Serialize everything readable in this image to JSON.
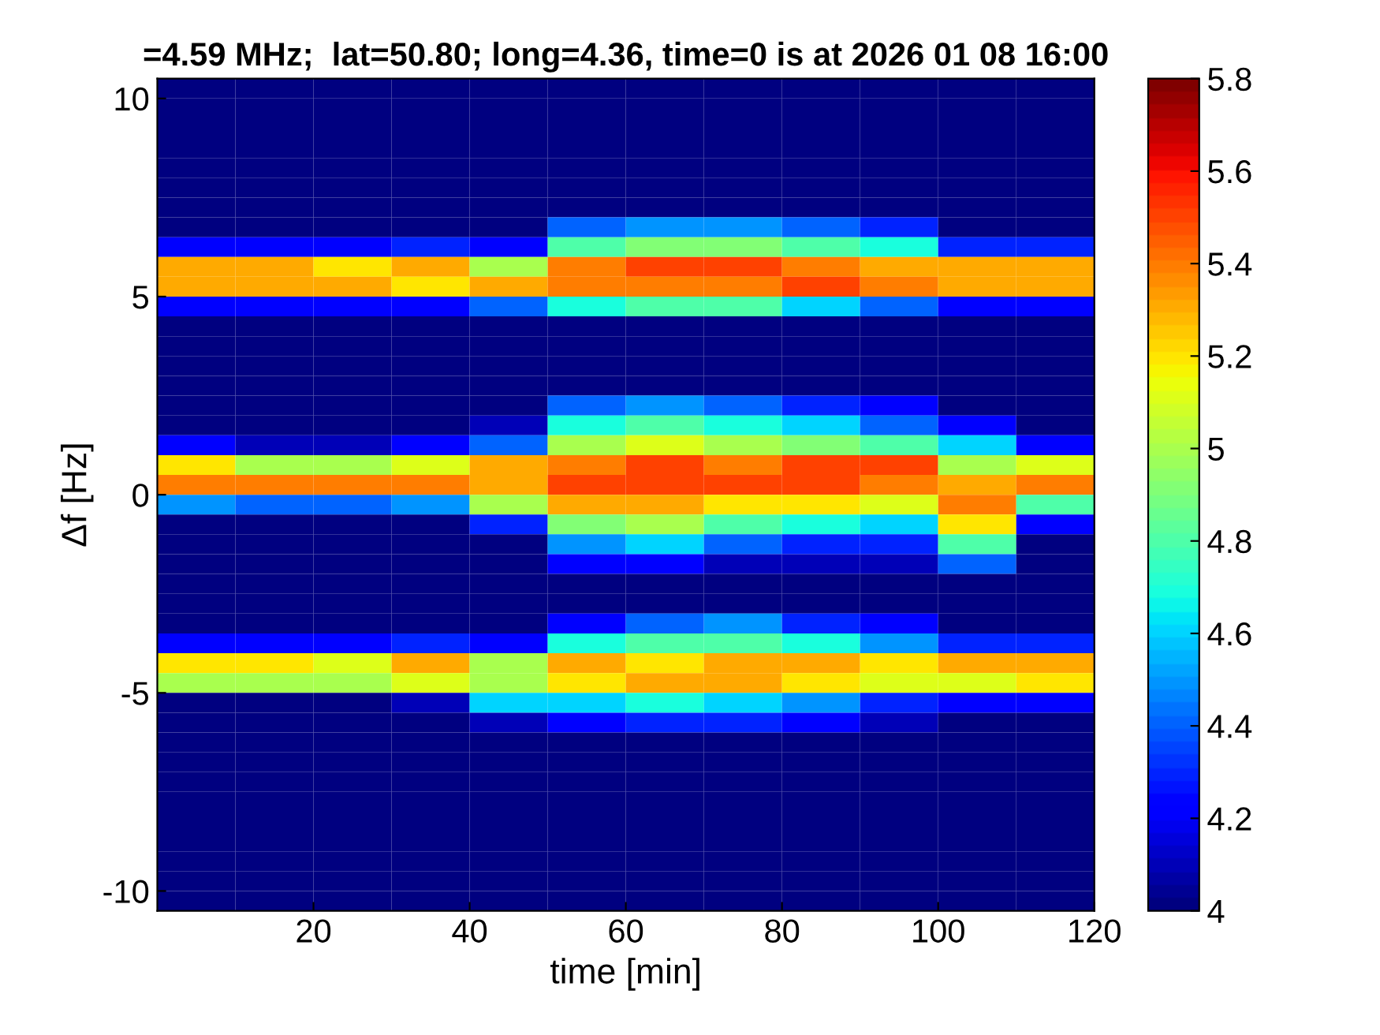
{
  "chart_data": {
    "type": "heatmap",
    "title": "=4.59 MHz;  lat=50.80; long=4.36, time=0 is at 2026 01 08 16:00",
    "xlabel": "time [min]",
    "ylabel": "Δf [Hz]",
    "xlim": [
      0,
      120
    ],
    "xticks": [
      20,
      40,
      60,
      80,
      100,
      120
    ],
    "ylim": [
      -10.5,
      10.5
    ],
    "yticks": [
      -10,
      -5,
      0,
      5,
      10
    ],
    "clim": [
      4,
      5.8
    ],
    "cticks": [
      4,
      4.2,
      4.4,
      4.6,
      4.8,
      5,
      5.2,
      5.4,
      5.6,
      5.8
    ],
    "grid": false,
    "cells": [
      [
        4,
        4,
        4,
        4,
        4,
        4,
        4,
        4,
        4,
        4,
        4,
        4
      ],
      [
        4,
        4,
        4,
        4,
        4,
        4,
        4,
        4,
        4,
        4,
        4,
        4
      ],
      [
        4,
        4,
        4,
        4,
        4,
        4,
        4,
        4,
        4,
        4,
        4,
        4
      ],
      [
        4,
        4,
        4,
        4,
        4,
        4,
        4,
        4,
        4,
        4,
        4,
        4
      ],
      [
        4,
        4,
        4,
        4,
        4,
        4,
        4,
        4,
        4,
        4,
        4,
        4
      ],
      [
        4,
        4,
        4,
        4,
        4,
        4,
        4,
        4,
        4,
        4,
        4,
        4
      ],
      [
        4,
        4,
        4,
        4,
        4,
        4,
        4,
        4,
        4,
        4,
        4,
        4
      ],
      [
        4,
        4,
        4,
        4,
        4,
        4.4,
        4.5,
        4.5,
        4.4,
        4.3,
        4,
        4
      ],
      [
        4.2,
        4.2,
        4.2,
        4.3,
        4.2,
        4.8,
        4.9,
        4.9,
        4.8,
        4.7,
        4.3,
        4.3
      ],
      [
        5.3,
        5.3,
        5.2,
        5.3,
        5,
        5.4,
        5.5,
        5.5,
        5.4,
        5.3,
        5.3,
        5.3
      ],
      [
        5.3,
        5.3,
        5.3,
        5.2,
        5.3,
        5.4,
        5.4,
        5.4,
        5.5,
        5.4,
        5.3,
        5.3
      ],
      [
        4.2,
        4.2,
        4.2,
        4.2,
        4.4,
        4.7,
        4.8,
        4.8,
        4.6,
        4.4,
        4.2,
        4.2
      ],
      [
        4,
        4,
        4,
        4,
        4,
        4,
        4,
        4,
        4,
        4,
        4,
        4
      ],
      [
        4,
        4,
        4,
        4,
        4,
        4,
        4,
        4,
        4,
        4,
        4,
        4
      ],
      [
        4,
        4,
        4,
        4,
        4,
        4,
        4,
        4,
        4,
        4,
        4,
        4
      ],
      [
        4,
        4,
        4,
        4,
        4,
        4,
        4,
        4,
        4,
        4,
        4,
        4
      ],
      [
        4,
        4,
        4,
        4,
        4,
        4.4,
        4.5,
        4.4,
        4.3,
        4.2,
        4,
        4
      ],
      [
        4,
        4,
        4,
        4,
        4.1,
        4.7,
        4.8,
        4.7,
        4.6,
        4.4,
        4.2,
        4
      ],
      [
        4.2,
        4.1,
        4.1,
        4.2,
        4.4,
        5,
        5.1,
        5,
        4.9,
        4.8,
        4.6,
        4.2
      ],
      [
        5.2,
        5,
        5,
        5.1,
        5.3,
        5.4,
        5.5,
        5.4,
        5.5,
        5.5,
        5,
        5.1
      ],
      [
        5.4,
        5.4,
        5.4,
        5.4,
        5.3,
        5.5,
        5.5,
        5.5,
        5.5,
        5.4,
        5.3,
        5.4
      ],
      [
        4.5,
        4.4,
        4.4,
        4.5,
        5,
        5.3,
        5.3,
        5.2,
        5.2,
        5.1,
        5.4,
        4.8
      ],
      [
        4,
        4,
        4,
        4,
        4.3,
        4.9,
        5,
        4.8,
        4.7,
        4.6,
        5.2,
        4.2
      ],
      [
        4,
        4,
        4,
        4,
        4,
        4.5,
        4.6,
        4.4,
        4.3,
        4.3,
        4.8,
        4
      ],
      [
        4,
        4,
        4,
        4,
        4,
        4.2,
        4.2,
        4.1,
        4.1,
        4.1,
        4.4,
        4
      ],
      [
        4,
        4,
        4,
        4,
        4,
        4,
        4,
        4,
        4,
        4,
        4,
        4
      ],
      [
        4,
        4,
        4,
        4,
        4,
        4,
        4,
        4,
        4,
        4,
        4,
        4
      ],
      [
        4,
        4,
        4,
        4,
        4,
        4.2,
        4.4,
        4.5,
        4.3,
        4.2,
        4,
        4
      ],
      [
        4.2,
        4.2,
        4.2,
        4.3,
        4.2,
        4.7,
        4.8,
        4.8,
        4.7,
        4.5,
        4.3,
        4.3
      ],
      [
        5.2,
        5.2,
        5.1,
        5.3,
        5,
        5.3,
        5.2,
        5.3,
        5.3,
        5.2,
        5.3,
        5.3
      ],
      [
        5,
        5,
        5,
        5.1,
        5,
        5.2,
        5.3,
        5.3,
        5.2,
        5.1,
        5.1,
        5.2
      ],
      [
        4,
        4,
        4,
        4.1,
        4.6,
        4.6,
        4.7,
        4.6,
        4.5,
        4.3,
        4.2,
        4.2
      ],
      [
        4,
        4,
        4,
        4,
        4.1,
        4.2,
        4.3,
        4.3,
        4.2,
        4.1,
        4,
        4
      ],
      [
        4,
        4,
        4,
        4,
        4,
        4,
        4,
        4,
        4,
        4,
        4,
        4
      ],
      [
        4,
        4,
        4,
        4,
        4,
        4,
        4,
        4,
        4,
        4,
        4,
        4
      ],
      [
        4,
        4,
        4,
        4,
        4,
        4,
        4,
        4,
        4,
        4,
        4,
        4
      ],
      [
        4,
        4,
        4,
        4,
        4,
        4,
        4,
        4,
        4,
        4,
        4,
        4
      ],
      [
        4,
        4,
        4,
        4,
        4,
        4,
        4,
        4,
        4,
        4,
        4,
        4
      ],
      [
        4,
        4,
        4,
        4,
        4,
        4,
        4,
        4,
        4,
        4,
        4,
        4
      ],
      [
        4,
        4,
        4,
        4,
        4,
        4,
        4,
        4,
        4,
        4,
        4,
        4
      ],
      [
        4,
        4,
        4,
        4,
        4,
        4,
        4,
        4,
        4,
        4,
        4,
        4
      ],
      [
        4,
        4,
        4,
        4,
        4,
        4,
        4,
        4,
        4,
        4,
        4,
        4
      ]
    ]
  }
}
